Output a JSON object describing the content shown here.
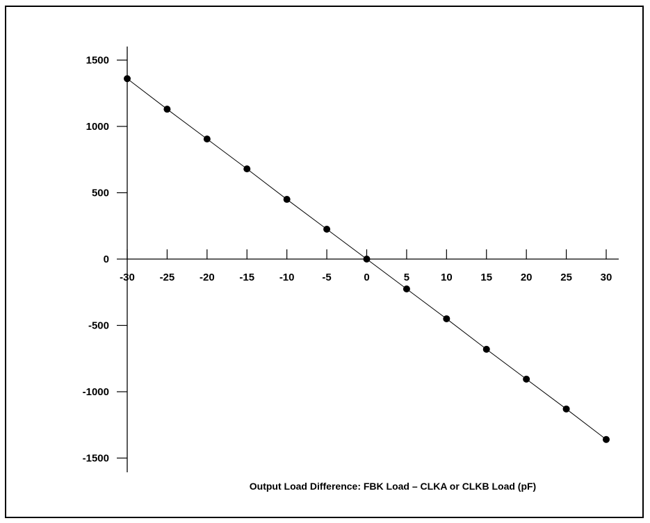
{
  "chart_data": {
    "type": "line",
    "title": "",
    "xlabel": "Output Load Difference: FBK Load – CLKA or CLKB Load (pF)",
    "ylabel": "",
    "x_ticks": [
      -30,
      -25,
      -20,
      -15,
      -10,
      -5,
      0,
      5,
      10,
      15,
      20,
      25,
      30
    ],
    "x_tick_labels": [
      "-30",
      "-25",
      "-20",
      "-15",
      "-10",
      "-5",
      "0",
      "5",
      "10",
      "15",
      "20",
      "25",
      "30"
    ],
    "y_ticks": [
      1500,
      1000,
      500,
      0,
      -500,
      -1000,
      -1500
    ],
    "y_tick_labels": [
      "1500",
      "1000",
      "500",
      "0",
      "-500",
      "-1000",
      "-1500"
    ],
    "xlim": [
      -30,
      30
    ],
    "ylim": [
      -1500,
      1500
    ],
    "grid": false,
    "series": [
      {
        "x": [
          -30,
          -25,
          -20,
          -15,
          -10,
          -5,
          0,
          5,
          10,
          15,
          20,
          25,
          30
        ],
        "y": [
          1360,
          1130,
          905,
          680,
          450,
          225,
          0,
          -225,
          -450,
          -680,
          -905,
          -1130,
          -1360
        ]
      }
    ]
  }
}
